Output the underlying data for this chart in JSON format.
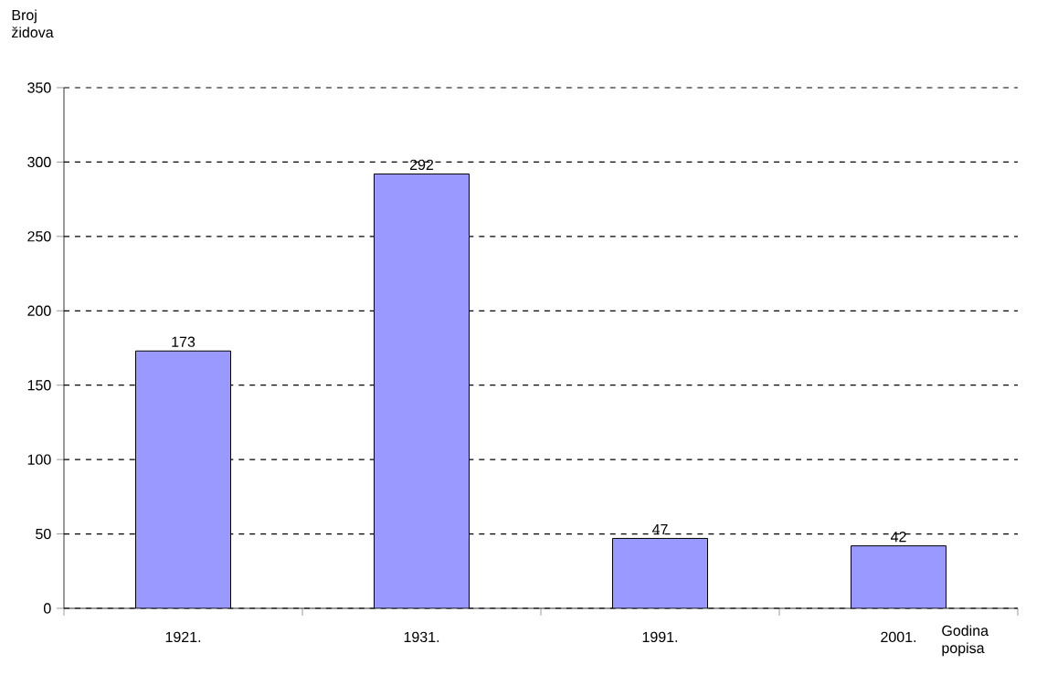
{
  "chart_data": {
    "type": "bar",
    "xlabel": "Godina popisa",
    "ylabel": "Broj židova",
    "categories": [
      "1921.",
      "1931.",
      "1991.",
      "2001."
    ],
    "values": [
      173,
      292,
      47,
      42
    ],
    "color": "#9999ff",
    "ylim": [
      0,
      350
    ],
    "yticks": [
      0,
      50,
      100,
      150,
      200,
      250,
      300,
      350
    ],
    "grid": "y",
    "data_labels": true
  }
}
